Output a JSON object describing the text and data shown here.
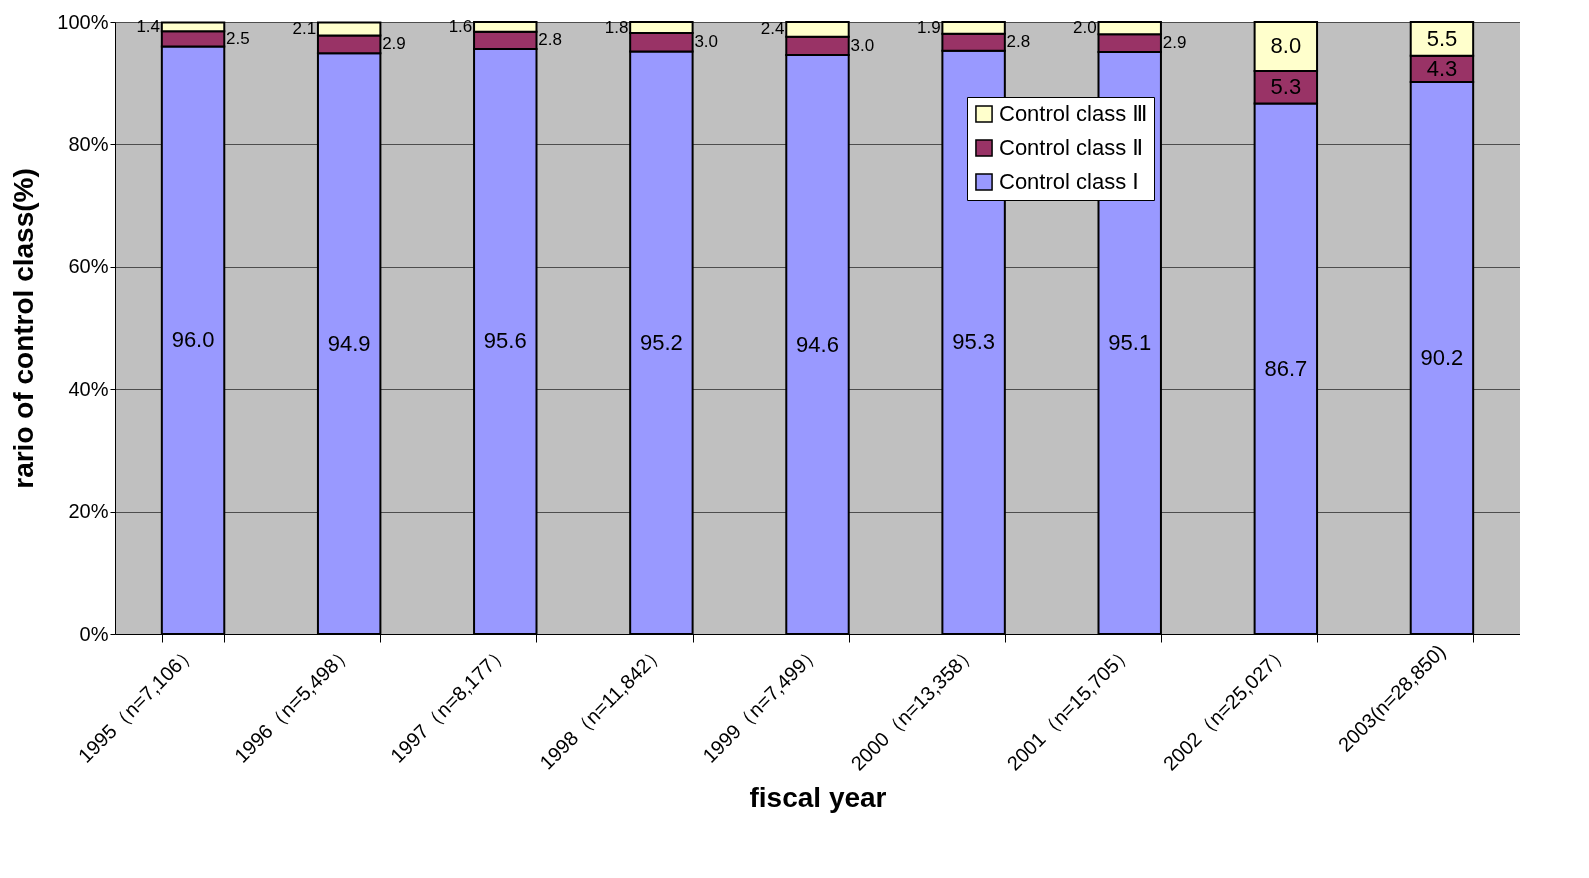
{
  "chart_data": {
    "type": "bar",
    "xlabel": "fiscal year",
    "ylabel": "rario of control class(%)",
    "stacked": true,
    "data_labels": true,
    "grid": "y",
    "legend": "top right",
    "categories": [
      "1995（n=7,106）",
      "1996（n=5,498）",
      "1997（n=8,177）",
      "1998（n=11,842）",
      "1999（n=7,499）",
      "2000（n=13,358）",
      "2001（n=15,705）",
      "2002（n=25,027）",
      "2003(n=28,850)"
    ],
    "ylim": [
      0,
      100
    ],
    "yticks": [
      {
        "value": 0,
        "label": "0%"
      },
      {
        "value": 20,
        "label": "20%"
      },
      {
        "value": 40,
        "label": "40%"
      },
      {
        "value": 60,
        "label": "60%"
      },
      {
        "value": 80,
        "label": "80%"
      },
      {
        "value": 100,
        "label": "100%"
      }
    ],
    "series": [
      {
        "name": "Control class Ⅰ",
        "color": "#9999ff",
        "values": [
          96.0,
          94.9,
          95.6,
          95.2,
          94.6,
          95.3,
          95.1,
          86.7,
          90.2
        ],
        "value_labels": [
          "96.0",
          "94.9",
          "95.6",
          "95.2",
          "94.6",
          "95.3",
          "95.1",
          "86.7",
          "90.2"
        ]
      },
      {
        "name": "Control class Ⅱ",
        "color": "#993366",
        "values": [
          2.5,
          2.9,
          2.8,
          3.0,
          3.0,
          2.8,
          2.9,
          5.3,
          4.3
        ],
        "value_labels": [
          "2.5",
          "2.9",
          "2.8",
          "3.0",
          "3.0",
          "2.8",
          "2.9",
          "5.3",
          "4.3"
        ]
      },
      {
        "name": "Control class Ⅲ",
        "color": "#ffffcc",
        "values": [
          1.4,
          2.1,
          1.6,
          1.8,
          2.4,
          1.9,
          2.0,
          8.0,
          5.5
        ],
        "value_labels": [
          "1.4",
          "2.1",
          "1.6",
          "1.8",
          "2.4",
          "1.9",
          "2.0",
          "8.0",
          "5.5"
        ]
      }
    ]
  }
}
